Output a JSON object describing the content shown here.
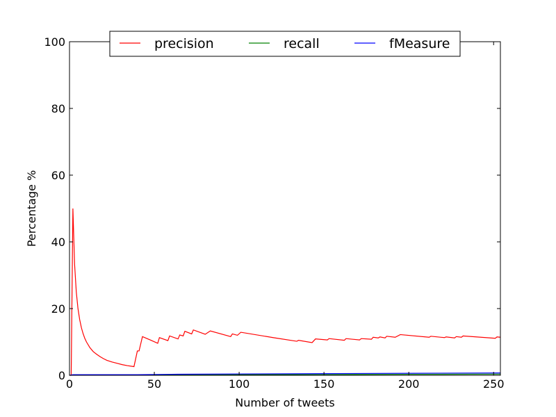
{
  "chart_data": {
    "type": "line",
    "xlabel": "Number of tweets",
    "ylabel": "Percentage %",
    "xlim": [
      0,
      254
    ],
    "ylim": [
      0,
      100
    ],
    "xticks": [
      0,
      50,
      100,
      150,
      200,
      250
    ],
    "yticks": [
      0,
      20,
      40,
      60,
      80,
      100
    ],
    "grid": false,
    "legend_position": "top-center",
    "series": [
      {
        "name": "precision",
        "color": "#ff0000",
        "points": [
          [
            0,
            0
          ],
          [
            1,
            0
          ],
          [
            2,
            50
          ],
          [
            3,
            33.3
          ],
          [
            4,
            25
          ],
          [
            5,
            20
          ],
          [
            6,
            16.7
          ],
          [
            7,
            14.3
          ],
          [
            8,
            12.5
          ],
          [
            9,
            11.1
          ],
          [
            10,
            10
          ],
          [
            12,
            8.3
          ],
          [
            14,
            7.1
          ],
          [
            16,
            6.3
          ],
          [
            18,
            5.6
          ],
          [
            20,
            5.0
          ],
          [
            22,
            4.5
          ],
          [
            25,
            4.0
          ],
          [
            28,
            3.6
          ],
          [
            31,
            3.2
          ],
          [
            34,
            2.9
          ],
          [
            38,
            2.6
          ],
          [
            40,
            7.3
          ],
          [
            41,
            7.3
          ],
          [
            43,
            11.6
          ],
          [
            48,
            10.5
          ],
          [
            52,
            9.6
          ],
          [
            53,
            11.3
          ],
          [
            58,
            10.4
          ],
          [
            59,
            11.8
          ],
          [
            64,
            10.9
          ],
          [
            65,
            12.1
          ],
          [
            67,
            11.8
          ],
          [
            68,
            13.2
          ],
          [
            72,
            12.4
          ],
          [
            73,
            13.6
          ],
          [
            80,
            12.3
          ],
          [
            83,
            13.3
          ],
          [
            95,
            11.6
          ],
          [
            96,
            12.4
          ],
          [
            99,
            12.0
          ],
          [
            101,
            12.9
          ],
          [
            120,
            11.3
          ],
          [
            134,
            10.2
          ],
          [
            135,
            10.5
          ],
          [
            143,
            9.8
          ],
          [
            145,
            10.9
          ],
          [
            152,
            10.6
          ],
          [
            153,
            11.0
          ],
          [
            162,
            10.5
          ],
          [
            163,
            11.0
          ],
          [
            171,
            10.6
          ],
          [
            172,
            11.0
          ],
          [
            178,
            10.8
          ],
          [
            179,
            11.4
          ],
          [
            182,
            11.2
          ],
          [
            183,
            11.5
          ],
          [
            186,
            11.2
          ],
          [
            187,
            11.7
          ],
          [
            192,
            11.4
          ],
          [
            195,
            12.2
          ],
          [
            212,
            11.4
          ],
          [
            213,
            11.7
          ],
          [
            221,
            11.3
          ],
          [
            222,
            11.5
          ],
          [
            227,
            11.2
          ],
          [
            228,
            11.6
          ],
          [
            231,
            11.4
          ],
          [
            232,
            11.8
          ],
          [
            251,
            11.1
          ],
          [
            252,
            11.5
          ],
          [
            254,
            11.4
          ]
        ]
      },
      {
        "name": "recall",
        "color": "#008000",
        "points": [
          [
            0,
            0
          ],
          [
            2,
            0.1
          ],
          [
            40,
            0.1
          ],
          [
            60,
            0.15
          ],
          [
            100,
            0.2
          ],
          [
            150,
            0.25
          ],
          [
            200,
            0.3
          ],
          [
            254,
            0.35
          ]
        ]
      },
      {
        "name": "fMeasure",
        "color": "#0000ff",
        "points": [
          [
            0,
            0
          ],
          [
            2,
            0.2
          ],
          [
            40,
            0.2
          ],
          [
            60,
            0.3
          ],
          [
            100,
            0.4
          ],
          [
            150,
            0.5
          ],
          [
            200,
            0.6
          ],
          [
            254,
            0.7
          ]
        ]
      }
    ]
  }
}
